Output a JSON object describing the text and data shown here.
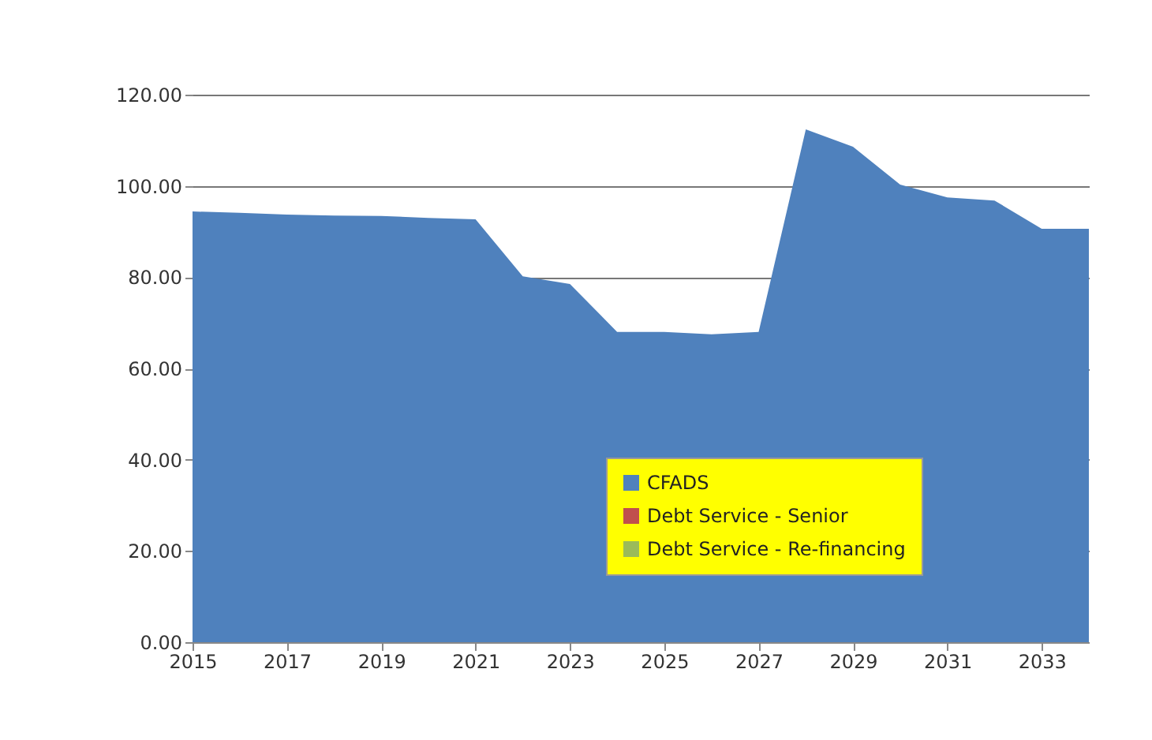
{
  "chart_data": {
    "type": "area",
    "x": [
      2015,
      2016,
      2017,
      2018,
      2019,
      2020,
      2021,
      2022,
      2023,
      2024,
      2025,
      2026,
      2027,
      2028,
      2029,
      2030,
      2031,
      2032,
      2033,
      2034
    ],
    "series": [
      {
        "name": "CFADS",
        "color": "#4f81bd",
        "values": [
          94.4,
          94.1,
          93.7,
          93.5,
          93.4,
          93.0,
          92.7,
          80.2,
          78.5,
          68.0,
          68.0,
          67.5,
          68.0,
          112.4,
          108.6,
          100.3,
          97.5,
          96.8,
          90.6,
          90.6
        ]
      },
      {
        "name": "Debt Service - Senior",
        "color": "#c0504d",
        "values": [
          null,
          null,
          null,
          null,
          null,
          null,
          null,
          null,
          null,
          null,
          null,
          null,
          null,
          null,
          null,
          null,
          null,
          null,
          null,
          null
        ]
      },
      {
        "name": "Debt Service - Re-financing",
        "color": "#9bbb59",
        "values": [
          null,
          null,
          null,
          null,
          null,
          null,
          null,
          null,
          null,
          null,
          null,
          null,
          null,
          null,
          null,
          null,
          null,
          null,
          null,
          null
        ]
      }
    ],
    "xlim": [
      2015,
      2034
    ],
    "xticks": [
      2015,
      2017,
      2019,
      2021,
      2023,
      2025,
      2027,
      2029,
      2031,
      2033
    ],
    "ylim": [
      0,
      120
    ],
    "yticks": [
      {
        "value": 0,
        "label": "0.00"
      },
      {
        "value": 20,
        "label": "20.00"
      },
      {
        "value": 40,
        "label": "40.00"
      },
      {
        "value": 60,
        "label": "60.00"
      },
      {
        "value": 80,
        "label": "80.00"
      },
      {
        "value": 100,
        "label": "100.00"
      },
      {
        "value": 120,
        "label": "120.00"
      }
    ],
    "grid": "y",
    "legend": "bottom right"
  }
}
